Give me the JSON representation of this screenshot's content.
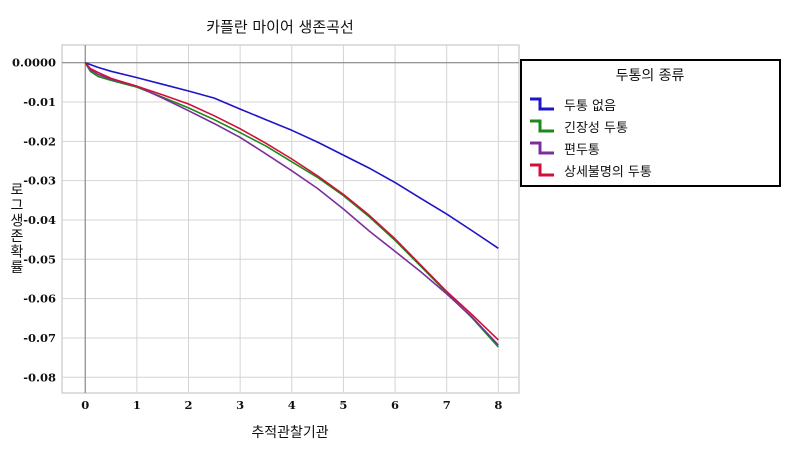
{
  "chart_data": {
    "type": "line",
    "title": "카플란 마이어 생존곡선",
    "xlabel": "추적관찰기관",
    "ylabel": "로그생존확률",
    "xlim": [
      -0.45,
      8.4
    ],
    "ylim": [
      -0.084,
      0.0045
    ],
    "x_ticks": [
      "0",
      "1",
      "2",
      "3",
      "4",
      "5",
      "6",
      "7",
      "8"
    ],
    "y_ticks": [
      "0.0000",
      "-0.01",
      "-0.02",
      "-0.03",
      "-0.04",
      "-0.05",
      "-0.06",
      "-0.07",
      "-0.08"
    ],
    "grid": true,
    "legend_title": "두통의 종류",
    "legend_position": "right",
    "series": [
      {
        "name": "두통 없음",
        "color": "#1f14c8",
        "x": [
          0,
          0.25,
          0.5,
          1,
          1.5,
          2,
          2.5,
          3,
          3.5,
          4,
          4.5,
          5,
          5.5,
          6,
          6.5,
          7,
          7.5,
          8
        ],
        "y": [
          0,
          -0.0012,
          -0.0022,
          -0.0038,
          -0.0055,
          -0.0072,
          -0.009,
          -0.0118,
          -0.0145,
          -0.0172,
          -0.0202,
          -0.0235,
          -0.0268,
          -0.0305,
          -0.0345,
          -0.0385,
          -0.0428,
          -0.0472
        ]
      },
      {
        "name": "긴장성 두통",
        "color": "#1a8a1a",
        "x": [
          0,
          0.1,
          0.25,
          0.5,
          1,
          1.5,
          2,
          2.5,
          3,
          3.5,
          4,
          4.5,
          5,
          5.5,
          6,
          6.5,
          7,
          7.5,
          8
        ],
        "y": [
          0,
          -0.0022,
          -0.0035,
          -0.0045,
          -0.0062,
          -0.0088,
          -0.0115,
          -0.0145,
          -0.0178,
          -0.0212,
          -0.0252,
          -0.0292,
          -0.0338,
          -0.0392,
          -0.0452,
          -0.0518,
          -0.0585,
          -0.065,
          -0.0723
        ]
      },
      {
        "name": "편두통",
        "color": "#7b2f9c",
        "x": [
          0,
          0.1,
          0.25,
          0.5,
          1,
          1.5,
          2,
          2.5,
          3,
          3.5,
          4,
          4.5,
          5,
          5.5,
          6,
          6.5,
          7,
          7.5,
          8
        ],
        "y": [
          0,
          -0.0018,
          -0.003,
          -0.0042,
          -0.006,
          -0.009,
          -0.0122,
          -0.0155,
          -0.019,
          -0.0232,
          -0.0275,
          -0.032,
          -0.0372,
          -0.0428,
          -0.048,
          -0.0532,
          -0.0588,
          -0.0648,
          -0.0718
        ]
      },
      {
        "name": "상세불명의 두통",
        "color": "#d20f3a",
        "x": [
          0,
          0.1,
          0.25,
          0.5,
          1,
          1.5,
          2,
          2.5,
          3,
          3.5,
          4,
          4.5,
          5,
          5.5,
          6,
          6.5,
          7,
          7.5,
          8
        ],
        "y": [
          0,
          -0.0015,
          -0.0025,
          -0.004,
          -0.006,
          -0.0082,
          -0.0105,
          -0.0135,
          -0.0168,
          -0.0205,
          -0.0245,
          -0.0288,
          -0.0335,
          -0.0388,
          -0.0448,
          -0.0515,
          -0.0582,
          -0.0642,
          -0.0705
        ]
      }
    ]
  }
}
